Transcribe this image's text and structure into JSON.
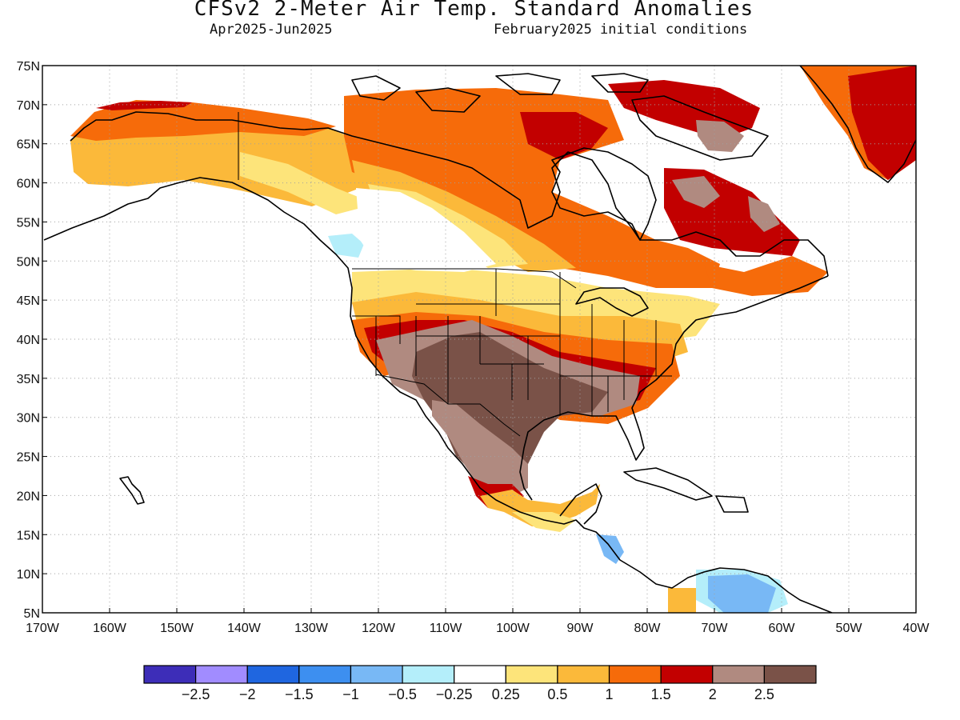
{
  "title": "CFSv2 2-Meter Air Temp. Standard Anomalies",
  "subtitle_left": "Apr2025-Jun2025",
  "subtitle_right": "February2025 initial conditions",
  "map": {
    "lat_labels": [
      "75N",
      "70N",
      "65N",
      "60N",
      "55N",
      "50N",
      "45N",
      "40N",
      "35N",
      "30N",
      "25N",
      "20N",
      "15N",
      "10N",
      "5N"
    ],
    "lon_labels": [
      "170W",
      "160W",
      "150W",
      "140W",
      "130W",
      "120W",
      "110W",
      "100W",
      "90W",
      "80W",
      "70W",
      "60W",
      "50W",
      "40W"
    ],
    "lat_range": [
      5,
      75
    ],
    "lon_range": [
      -170,
      -40
    ],
    "grid": "dotted"
  },
  "colorbar": {
    "colors": [
      "#3d2db8",
      "#a18cff",
      "#1f66e0",
      "#3d8ff0",
      "#78b8f5",
      "#b4eefa",
      "#ffffff",
      "#fde47a",
      "#fbb93a",
      "#f66b0a",
      "#c20000",
      "#b08a80",
      "#7a5248"
    ],
    "labels": [
      "-2.5",
      "-2",
      "-1.5",
      "-1",
      "-0.5",
      "-0.25",
      "0.25",
      "0.5",
      "1",
      "1.5",
      "2",
      "2.5"
    ]
  },
  "colors": {
    "land_outline": "#000000",
    "gridline": "#a0a0a0"
  }
}
